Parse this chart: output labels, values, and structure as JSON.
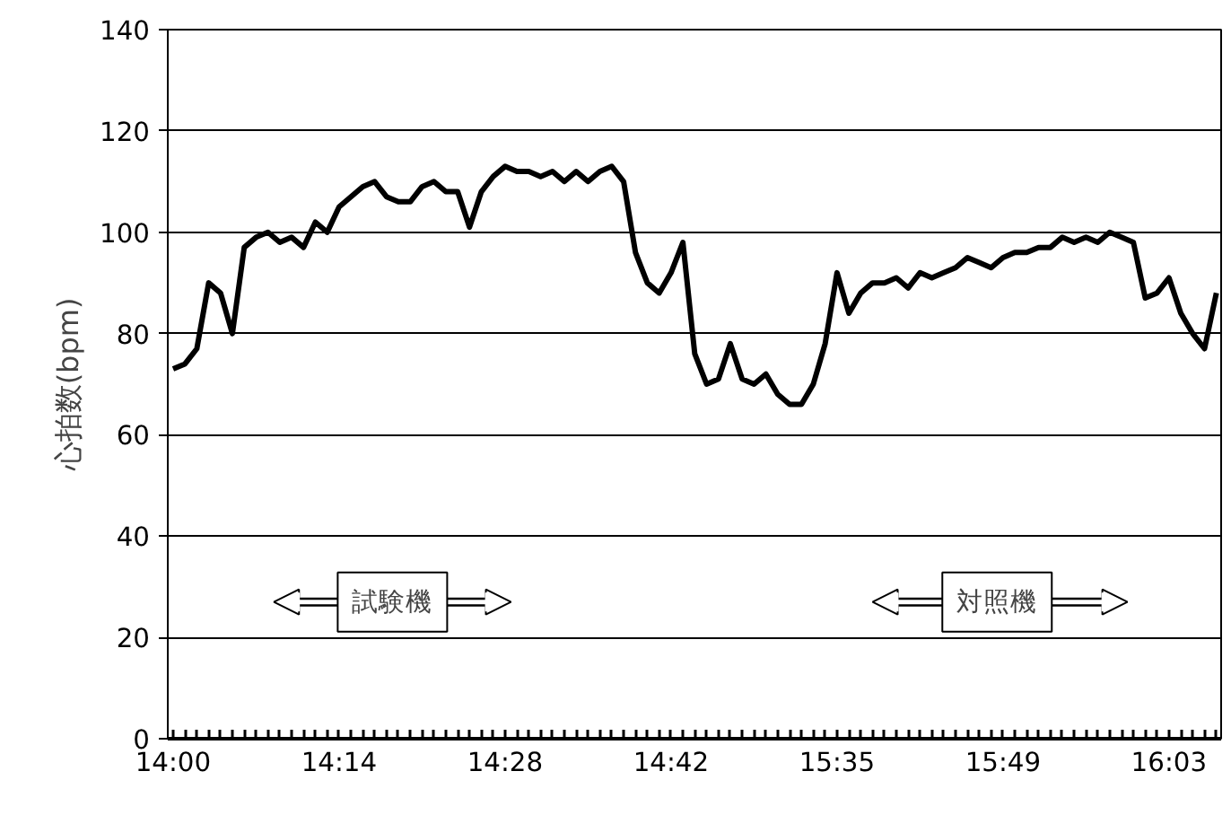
{
  "chart_data": {
    "type": "line",
    "ylabel": "心拍数(bpm)",
    "categories": [
      "14:00",
      null,
      null,
      null,
      null,
      null,
      null,
      null,
      null,
      null,
      null,
      null,
      null,
      null,
      "14:14",
      null,
      null,
      null,
      null,
      null,
      null,
      null,
      null,
      null,
      null,
      null,
      null,
      null,
      "14:28",
      null,
      null,
      null,
      null,
      null,
      null,
      null,
      null,
      null,
      null,
      null,
      null,
      null,
      "14:42",
      null,
      null,
      null,
      null,
      null,
      null,
      null,
      null,
      null,
      null,
      null,
      null,
      null,
      "15:35",
      null,
      null,
      null,
      null,
      null,
      null,
      null,
      null,
      null,
      null,
      null,
      null,
      null,
      "15:49",
      null,
      null,
      null,
      null,
      null,
      null,
      null,
      null,
      null,
      null,
      null,
      null,
      null,
      "16:03",
      null,
      null,
      null,
      null
    ],
    "series": [
      {
        "color": "#000000",
        "values": [
          73,
          74,
          77,
          90,
          88,
          80,
          97,
          99,
          100,
          98,
          99,
          97,
          102,
          100,
          105,
          107,
          109,
          110,
          107,
          106,
          106,
          109,
          110,
          108,
          108,
          101,
          108,
          111,
          113,
          112,
          112,
          111,
          112,
          110,
          112,
          110,
          112,
          113,
          110,
          96,
          90,
          88,
          92,
          98,
          76,
          70,
          71,
          78,
          71,
          70,
          72,
          68,
          66,
          66,
          70,
          78,
          92,
          84,
          88,
          90,
          90,
          91,
          89,
          92,
          91,
          92,
          93,
          95,
          94,
          93,
          95,
          96,
          96,
          97,
          97,
          99,
          98,
          99,
          98,
          100,
          99,
          98,
          87,
          88,
          91,
          84,
          80,
          77,
          88
        ]
      }
    ],
    "ylim": [
      0,
      140
    ],
    "yticks": [
      0,
      20,
      40,
      60,
      80,
      100,
      120,
      140
    ],
    "grid": "y",
    "marker": "none",
    "line_style": "solid",
    "annotations": [
      "試験機",
      "対照機"
    ]
  }
}
